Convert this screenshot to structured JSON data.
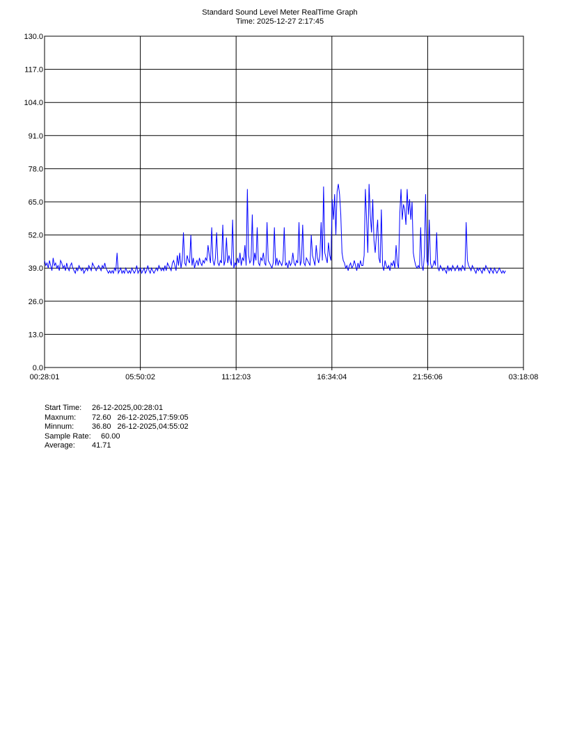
{
  "header": {
    "title": "Standard Sound Level Meter RealTime Graph",
    "time_line": "Time: 2025-12-27  2:17:45"
  },
  "chart_data": {
    "type": "line",
    "title": "Standard Sound Level Meter RealTime Graph",
    "subtitle": "Time: 2025-12-27  2:17:45",
    "xlabel": "",
    "ylabel": "",
    "ylim": [
      0,
      130
    ],
    "grid": true,
    "x_tick_labels": [
      "00:28:01",
      "05:50:02",
      "11:12:03",
      "16:34:04",
      "21:56:06",
      "03:18:08"
    ],
    "y_tick_labels": [
      "0.0",
      "13.0",
      "26.0",
      "39.0",
      "52.0",
      "65.0",
      "78.0",
      "91.0",
      "104.0",
      "117.0",
      "130.0"
    ],
    "series": [
      {
        "color": "#0000ff",
        "x_time_range": [
          "00:28:01",
          "02:17:45"
        ],
        "values": [
          42,
          40,
          41,
          39,
          42,
          40,
          38,
          43,
          40,
          41,
          39,
          40,
          38,
          42,
          41,
          39,
          40,
          38,
          41,
          39,
          38,
          40,
          41,
          39,
          38,
          37,
          39,
          38,
          40,
          39,
          38,
          39,
          37,
          38,
          39,
          38,
          40,
          39,
          38,
          41,
          40,
          39,
          38,
          39,
          40,
          39,
          38,
          40,
          39,
          41,
          39,
          38,
          37,
          38,
          37,
          38,
          37,
          39,
          38,
          45,
          37,
          38,
          39,
          37,
          38,
          37,
          39,
          38,
          37,
          38,
          37,
          39,
          38,
          37,
          38,
          40,
          37,
          38,
          39,
          37,
          38,
          39,
          37,
          38,
          40,
          38,
          37,
          39,
          38,
          37,
          38,
          39,
          38,
          40,
          39,
          38,
          39,
          38,
          40,
          38,
          41,
          40,
          39,
          38,
          41,
          42,
          40,
          38,
          44,
          40,
          45,
          39,
          42,
          53,
          41,
          40,
          44,
          42,
          41,
          52,
          40,
          43,
          39,
          41,
          42,
          40,
          43,
          41,
          40,
          42,
          41,
          43,
          42,
          48,
          44,
          41,
          55,
          42,
          40,
          43,
          53,
          41,
          40,
          42,
          41,
          56,
          40,
          42,
          51,
          41,
          44,
          42,
          40,
          58,
          39,
          41,
          40,
          43,
          41,
          45,
          40,
          43,
          42,
          48,
          40,
          70,
          44,
          41,
          42,
          60,
          40,
          45,
          42,
          55,
          41,
          40,
          43,
          42,
          45,
          41,
          40,
          57,
          42,
          41,
          40,
          39,
          41,
          55,
          40,
          43,
          40,
          42,
          41,
          40,
          42,
          55,
          40,
          41,
          39,
          42,
          40,
          41,
          45,
          41,
          40,
          42,
          41,
          57,
          40,
          42,
          56,
          41,
          40,
          43,
          42,
          41,
          40,
          52,
          44,
          42,
          40,
          48,
          43,
          41,
          44,
          57,
          42,
          71,
          45,
          43,
          41,
          49,
          44,
          42,
          66,
          58,
          68,
          52,
          69,
          72,
          68,
          60,
          45,
          42,
          41,
          39,
          40,
          38,
          40,
          41,
          39,
          40,
          42,
          40,
          38,
          41,
          39,
          42,
          40,
          40,
          44,
          70,
          58,
          45,
          72,
          60,
          53,
          66,
          50,
          45,
          52,
          58,
          43,
          41,
          62,
          40,
          38,
          42,
          40,
          39,
          40,
          38,
          41,
          40,
          42,
          39,
          48,
          41,
          39,
          60,
          70,
          58,
          64,
          62,
          56,
          70,
          60,
          66,
          58,
          65,
          45,
          42,
          40,
          39,
          40,
          39,
          55,
          40,
          38,
          44,
          68,
          42,
          40,
          58,
          41,
          39,
          40,
          42,
          40,
          53,
          39,
          38,
          40,
          39,
          38,
          39,
          38,
          37,
          40,
          38,
          39,
          38,
          40,
          39,
          38,
          39,
          40,
          38,
          39,
          38,
          40,
          39,
          38,
          57,
          42,
          40,
          39,
          38,
          40,
          39,
          38,
          37,
          39,
          38,
          39,
          38,
          37,
          39,
          38,
          40,
          39,
          38,
          37,
          39,
          38,
          37,
          39,
          38,
          37,
          38,
          39,
          38,
          37,
          38,
          37,
          38
        ]
      }
    ]
  },
  "stats": {
    "start_time_label": "Start Time:",
    "start_time_value": "26-12-2025,00:28:01",
    "max_label": "Maxnum:",
    "max_value": "72.60",
    "max_time": "26-12-2025,17:59:05",
    "min_label": "Minnum:",
    "min_value": "36.80",
    "min_time": "26-12-2025,04:55:02",
    "sample_rate_label": "Sample Rate:",
    "sample_rate_value": "60.00",
    "average_label": "Average:",
    "average_value": "41.71"
  }
}
